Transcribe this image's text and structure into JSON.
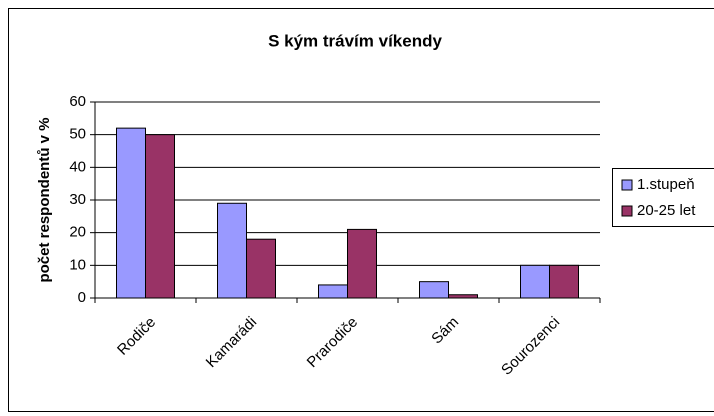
{
  "chart_data": {
    "type": "bar",
    "title": "S kým trávím víkendy",
    "y_label": "počet respondentů v %",
    "categories": [
      "Rodiče",
      "Kamarádi",
      "Prarodiče",
      "Sám",
      "Sourozenci"
    ],
    "series": [
      {
        "name": "1.stupeň",
        "color": "#9999ff",
        "values": [
          52,
          29,
          4,
          5,
          10
        ]
      },
      {
        "name": "20-25 let",
        "color": "#993366",
        "values": [
          50,
          18,
          21,
          1,
          10
        ]
      }
    ],
    "ylim": [
      0,
      60
    ],
    "yticks": [
      0,
      10,
      20,
      30,
      40,
      50,
      60
    ],
    "grid": true,
    "legend": "right"
  }
}
